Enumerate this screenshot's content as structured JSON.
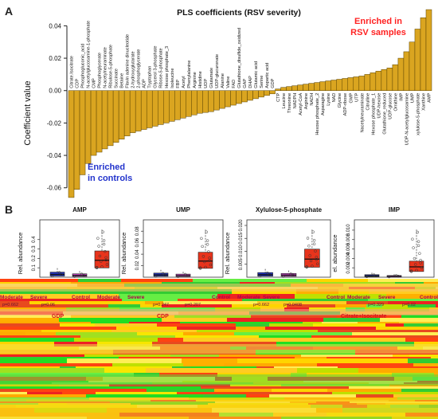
{
  "panel_a": {
    "letter": "A",
    "enriched_rsv": [
      "Enriched in",
      "RSV samples"
    ],
    "enriched_controls": [
      "Enriched",
      "in controls"
    ]
  },
  "panel_b": {
    "letter": "B"
  },
  "colors": {
    "bar": "#DAA520",
    "control": "#E8341C",
    "moderate": "#2233BB",
    "severe": "#CC44CC",
    "rsv_text": "#FF2222",
    "ctrl_text": "#2233CC"
  },
  "chart_data": [
    {
      "type": "bar",
      "title": "PLS coefficients (RSV severity)",
      "ylabel": "Coefficient value",
      "xlabel": "",
      "ylim": [
        -0.068,
        0.052
      ],
      "yticks": [
        -0.06,
        -0.04,
        -0.02,
        0.0,
        0.02,
        0.04
      ],
      "ytick_labels": [
        "-0.06",
        "-0.04",
        "-0.02",
        "0.00",
        "0.02",
        "0.04"
      ],
      "grid": false,
      "categories": [
        "Citrate.Isocitrate",
        "CDP",
        "Phosphogluconic_acid",
        "N-acetylglucosamine-1-phosphate",
        "CMP",
        "Phosphoglycerate",
        "N-acetylneuraminate",
        "Ribulose-5-phosphate",
        "Succinate",
        "Betaine",
        "Flavin adenine dinucleotide",
        "2-hydroxyglutarate",
        "2-phosphoglycerate",
        "ADP",
        "Tryptophan",
        "Glycerol 3-phosphate",
        "Ribose-5-phosphate",
        "Hexose phosphate_3",
        "Isoleucine",
        "FBP",
        "Acetyl",
        "Phenylalanine",
        "Arginine",
        "Histidine",
        "UDP",
        "Glutamate",
        "UDP-glucuronate",
        "Alanine",
        "Valine",
        "FAD",
        "Glutathione_disulfide_oxidized",
        "GAP",
        "DHAP",
        "Glutamic acid",
        "Serine",
        "Aspartic acid",
        "GDP",
        "CTP",
        "Leucine",
        "Threonine",
        "NADPH",
        "Acetyl-CoA",
        "Arginine",
        "NADH",
        "Hexose phosphate_2",
        "Asparagine",
        "Lysine",
        "NAD",
        "Glycine",
        "ADP-ribose",
        "GMP",
        "UTP",
        "Nacetylneuraminate",
        "Citrulline",
        "Hexose phosphate_1",
        "UDP-hexose",
        "Glutathione_reduced",
        "UDP-glucose",
        "Ornithine",
        "IMP",
        "UDP-N-acetylglucosamine",
        "UMP",
        "xylulose-5-phosphate",
        "Xanthine",
        "AMP"
      ],
      "values": [
        -0.066,
        -0.061,
        -0.052,
        -0.045,
        -0.04,
        -0.038,
        -0.036,
        -0.034,
        -0.032,
        -0.03,
        -0.028,
        -0.026,
        -0.025,
        -0.024,
        -0.023,
        -0.022,
        -0.021,
        -0.02,
        -0.019,
        -0.018,
        -0.017,
        -0.016,
        -0.015,
        -0.014,
        -0.0135,
        -0.013,
        -0.012,
        -0.011,
        -0.01,
        -0.009,
        -0.008,
        -0.007,
        -0.006,
        -0.005,
        -0.004,
        -0.003,
        -0.002,
        0.001,
        0.002,
        0.0025,
        0.003,
        0.0035,
        0.004,
        0.0045,
        0.005,
        0.0055,
        0.006,
        0.0065,
        0.007,
        0.0075,
        0.008,
        0.0085,
        0.009,
        0.01,
        0.011,
        0.012,
        0.013,
        0.014,
        0.016,
        0.02,
        0.024,
        0.03,
        0.038,
        0.045,
        0.05
      ]
    },
    {
      "type": "box",
      "title": "AMP",
      "ylabel": "Rel. abundance",
      "ylim": [
        0,
        0.55
      ],
      "yticks": [
        0.1,
        0.2,
        0.3,
        0.4
      ],
      "ytick_labels": [
        "0.1",
        "0.2",
        "0.3",
        "0.4"
      ],
      "groups": [
        "Control",
        "Moderate",
        "Severe"
      ],
      "medians": [
        0.18,
        0.03,
        0.02
      ]
    },
    {
      "type": "box",
      "title": "UMP",
      "ylabel": "Rel. abundance",
      "ylim": [
        0,
        0.09
      ],
      "yticks": [
        0.02,
        0.04,
        0.06,
        0.08
      ],
      "ytick_labels": [
        "0.02",
        "0.04",
        "0.06",
        "0.08"
      ],
      "groups": [
        "Control",
        "Moderate",
        "Severe"
      ],
      "medians": [
        0.028,
        0.004,
        0.003
      ]
    },
    {
      "type": "box",
      "title": "Xylulose-5-phosphate",
      "ylabel": "Rel. abundance",
      "ylim": [
        0,
        0.02
      ],
      "yticks": [
        0.005,
        0.01,
        0.015,
        0.02
      ],
      "ytick_labels": [
        "0.005",
        "0.010",
        "0.015",
        "0.020"
      ],
      "groups": [
        "Control",
        "Moderate",
        "Severe"
      ],
      "medians": [
        0.007,
        0.001,
        0.0008
      ]
    },
    {
      "type": "box",
      "title": "IMP",
      "ylabel": "el. abundance",
      "ylim": [
        0,
        0.011
      ],
      "yticks": [
        0.002,
        0.004,
        0.006,
        0.008,
        0.01
      ],
      "ytick_labels": [
        "0.002",
        "0.004",
        "0.006",
        "0.008",
        "0.010"
      ],
      "groups": [
        "Control",
        "Moderate",
        "Severe"
      ],
      "medians": [
        0.0022,
        0.0003,
        0.0002
      ]
    }
  ],
  "glitch_labels": {
    "pvals": [
      "p=0.662",
      "p=0.06",
      "p=0.247",
      "p=0.207",
      "p=0.662",
      "p=0.0408",
      "p=0.329",
      "p=0.02"
    ],
    "group_names": [
      "Moderate",
      "Severe",
      "Control",
      "Moderate",
      "Severe",
      "Control",
      "Moderate",
      "Severe",
      "Control",
      "Moderate",
      "Severe",
      "Control"
    ],
    "lower_titles": [
      "GDP",
      "CDP",
      "Citrate+Isocitrate"
    ]
  }
}
